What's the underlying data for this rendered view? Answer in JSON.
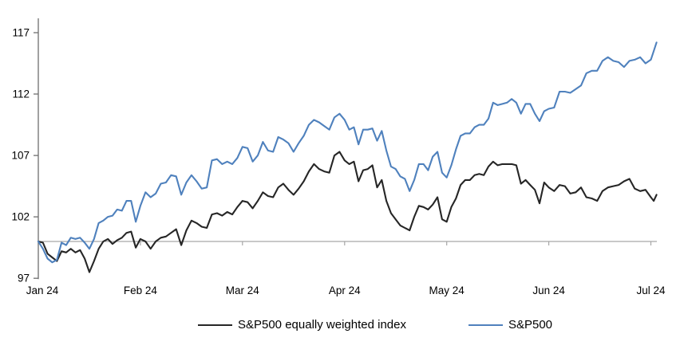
{
  "chart_data": {
    "type": "line",
    "title": "",
    "xlabel": "",
    "ylabel": "",
    "ylim": [
      97,
      117
    ],
    "y_ticks": [
      97,
      102,
      107,
      112,
      117
    ],
    "x_tick_labels": [
      "Jan 24",
      "Feb 24",
      "Mar 24",
      "Apr 24",
      "May 24",
      "Jun 24",
      "Jul 24"
    ],
    "baseline_value": 100,
    "grid": "off",
    "legend_position": "bottom",
    "dates": [
      "Dec 29",
      "Jan 2",
      "Jan 3",
      "Jan 4",
      "Jan 5",
      "Jan 8",
      "Jan 9",
      "Jan 10",
      "Jan 11",
      "Jan 12",
      "Jan 16",
      "Jan 17",
      "Jan 18",
      "Jan 19",
      "Jan 22",
      "Jan 23",
      "Jan 24",
      "Jan 25",
      "Jan 26",
      "Jan 29",
      "Jan 30",
      "Jan 31",
      "Feb 1",
      "Feb 2",
      "Feb 5",
      "Feb 6",
      "Feb 7",
      "Feb 8",
      "Feb 9",
      "Feb 12",
      "Feb 13",
      "Feb 14",
      "Feb 15",
      "Feb 16",
      "Feb 20",
      "Feb 21",
      "Feb 22",
      "Feb 23",
      "Feb 26",
      "Feb 27",
      "Feb 28",
      "Feb 29",
      "Mar 1",
      "Mar 4",
      "Mar 5",
      "Mar 6",
      "Mar 7",
      "Mar 8",
      "Mar 11",
      "Mar 12",
      "Mar 13",
      "Mar 14",
      "Mar 15",
      "Mar 18",
      "Mar 19",
      "Mar 20",
      "Mar 21",
      "Mar 22",
      "Mar 25",
      "Mar 26",
      "Mar 27",
      "Mar 28",
      "Apr 1",
      "Apr 2",
      "Apr 3",
      "Apr 4",
      "Apr 5",
      "Apr 8",
      "Apr 9",
      "Apr 10",
      "Apr 11",
      "Apr 12",
      "Apr 15",
      "Apr 16",
      "Apr 17",
      "Apr 18",
      "Apr 19",
      "Apr 22",
      "Apr 23",
      "Apr 24",
      "Apr 25",
      "Apr 26",
      "Apr 29",
      "Apr 30",
      "May 1",
      "May 2",
      "May 3",
      "May 6",
      "May 7",
      "May 8",
      "May 9",
      "May 10",
      "May 13",
      "May 14",
      "May 15",
      "May 16",
      "May 17",
      "May 20",
      "May 21",
      "May 22",
      "May 23",
      "May 24",
      "May 28",
      "May 29",
      "May 30",
      "May 31",
      "Jun 3",
      "Jun 4",
      "Jun 5",
      "Jun 6",
      "Jun 7",
      "Jun 10",
      "Jun 11",
      "Jun 12",
      "Jun 13",
      "Jun 14",
      "Jun 17",
      "Jun 18",
      "Jun 20",
      "Jun 21",
      "Jun 24",
      "Jun 25",
      "Jun 26",
      "Jun 27",
      "Jun 28",
      "Jul 1",
      "Jul 2",
      "Jul 3"
    ],
    "series": [
      {
        "name": "S&P500 equally weighted index",
        "color": "#262626",
        "values": [
          100.0,
          99.9,
          99.0,
          98.7,
          98.4,
          99.2,
          99.1,
          99.4,
          99.1,
          99.3,
          98.6,
          97.5,
          98.4,
          99.4,
          100.0,
          100.2,
          99.8,
          100.1,
          100.3,
          100.7,
          100.8,
          99.5,
          100.2,
          100.0,
          99.4,
          100.0,
          100.3,
          100.4,
          100.7,
          101.0,
          99.7,
          100.9,
          101.7,
          101.5,
          101.2,
          101.1,
          102.2,
          102.3,
          102.1,
          102.4,
          102.2,
          102.8,
          103.3,
          103.2,
          102.7,
          103.3,
          104.0,
          103.7,
          103.6,
          104.4,
          104.7,
          104.2,
          103.8,
          104.3,
          104.9,
          105.7,
          106.3,
          105.9,
          105.7,
          105.6,
          107.0,
          107.3,
          106.6,
          106.3,
          106.5,
          104.9,
          105.8,
          105.9,
          106.2,
          104.4,
          105.0,
          103.3,
          102.3,
          101.8,
          101.3,
          101.1,
          100.9,
          102.0,
          102.9,
          102.8,
          102.6,
          103.0,
          103.6,
          101.8,
          101.6,
          102.8,
          103.5,
          104.6,
          105.0,
          105.0,
          105.4,
          105.5,
          105.4,
          106.1,
          106.5,
          106.2,
          106.3,
          106.3,
          106.3,
          106.2,
          104.7,
          105.0,
          104.6,
          104.2,
          103.1,
          104.8,
          104.4,
          104.1,
          104.6,
          104.5,
          103.9,
          104.0,
          104.4,
          103.6,
          103.5,
          103.3,
          104.1,
          104.4,
          104.5,
          104.6,
          104.9,
          105.1,
          104.3,
          104.1,
          104.2,
          103.6,
          103.3,
          103.8
        ]
      },
      {
        "name": "S&P500",
        "color": "#4f81bd",
        "values": [
          100.0,
          99.4,
          98.6,
          98.3,
          98.5,
          99.9,
          99.7,
          100.3,
          100.2,
          100.3,
          99.9,
          99.4,
          100.2,
          101.5,
          101.7,
          102.0,
          102.1,
          102.6,
          102.5,
          103.3,
          103.3,
          101.6,
          102.9,
          104.0,
          103.6,
          103.9,
          104.7,
          104.8,
          105.4,
          105.3,
          103.8,
          104.8,
          105.4,
          104.9,
          104.3,
          104.4,
          106.6,
          106.7,
          106.3,
          106.5,
          106.3,
          106.8,
          107.7,
          107.6,
          106.5,
          107.0,
          108.1,
          107.4,
          107.3,
          108.5,
          108.3,
          108.0,
          107.3,
          108.0,
          108.6,
          109.5,
          109.9,
          109.7,
          109.4,
          109.1,
          110.1,
          110.4,
          109.9,
          109.1,
          109.3,
          107.9,
          109.1,
          109.1,
          109.2,
          108.2,
          109.0,
          107.4,
          106.1,
          105.9,
          105.3,
          105.1,
          104.1,
          105.0,
          106.3,
          106.3,
          105.8,
          106.9,
          107.3,
          105.6,
          105.2,
          106.2,
          107.5,
          108.6,
          108.8,
          108.8,
          109.3,
          109.5,
          109.5,
          110.0,
          111.3,
          111.1,
          111.2,
          111.3,
          111.6,
          111.3,
          110.4,
          111.2,
          111.2,
          110.4,
          109.8,
          110.6,
          110.8,
          110.9,
          112.2,
          112.2,
          112.1,
          112.4,
          112.7,
          113.7,
          113.9,
          113.9,
          114.7,
          115.0,
          114.7,
          114.6,
          114.2,
          114.7,
          114.8,
          115.0,
          114.5,
          114.8,
          115.5,
          116.2
        ]
      }
    ]
  },
  "colors": {
    "axis": "#6e6e6e",
    "baseline": "#a6a6a6",
    "text": "#000000",
    "series_ew": "#262626",
    "series_spx": "#4f81bd",
    "background": "#ffffff"
  },
  "legend": {
    "items": [
      {
        "label": "S&P500 equally weighted index"
      },
      {
        "label": "S&P500"
      }
    ]
  }
}
